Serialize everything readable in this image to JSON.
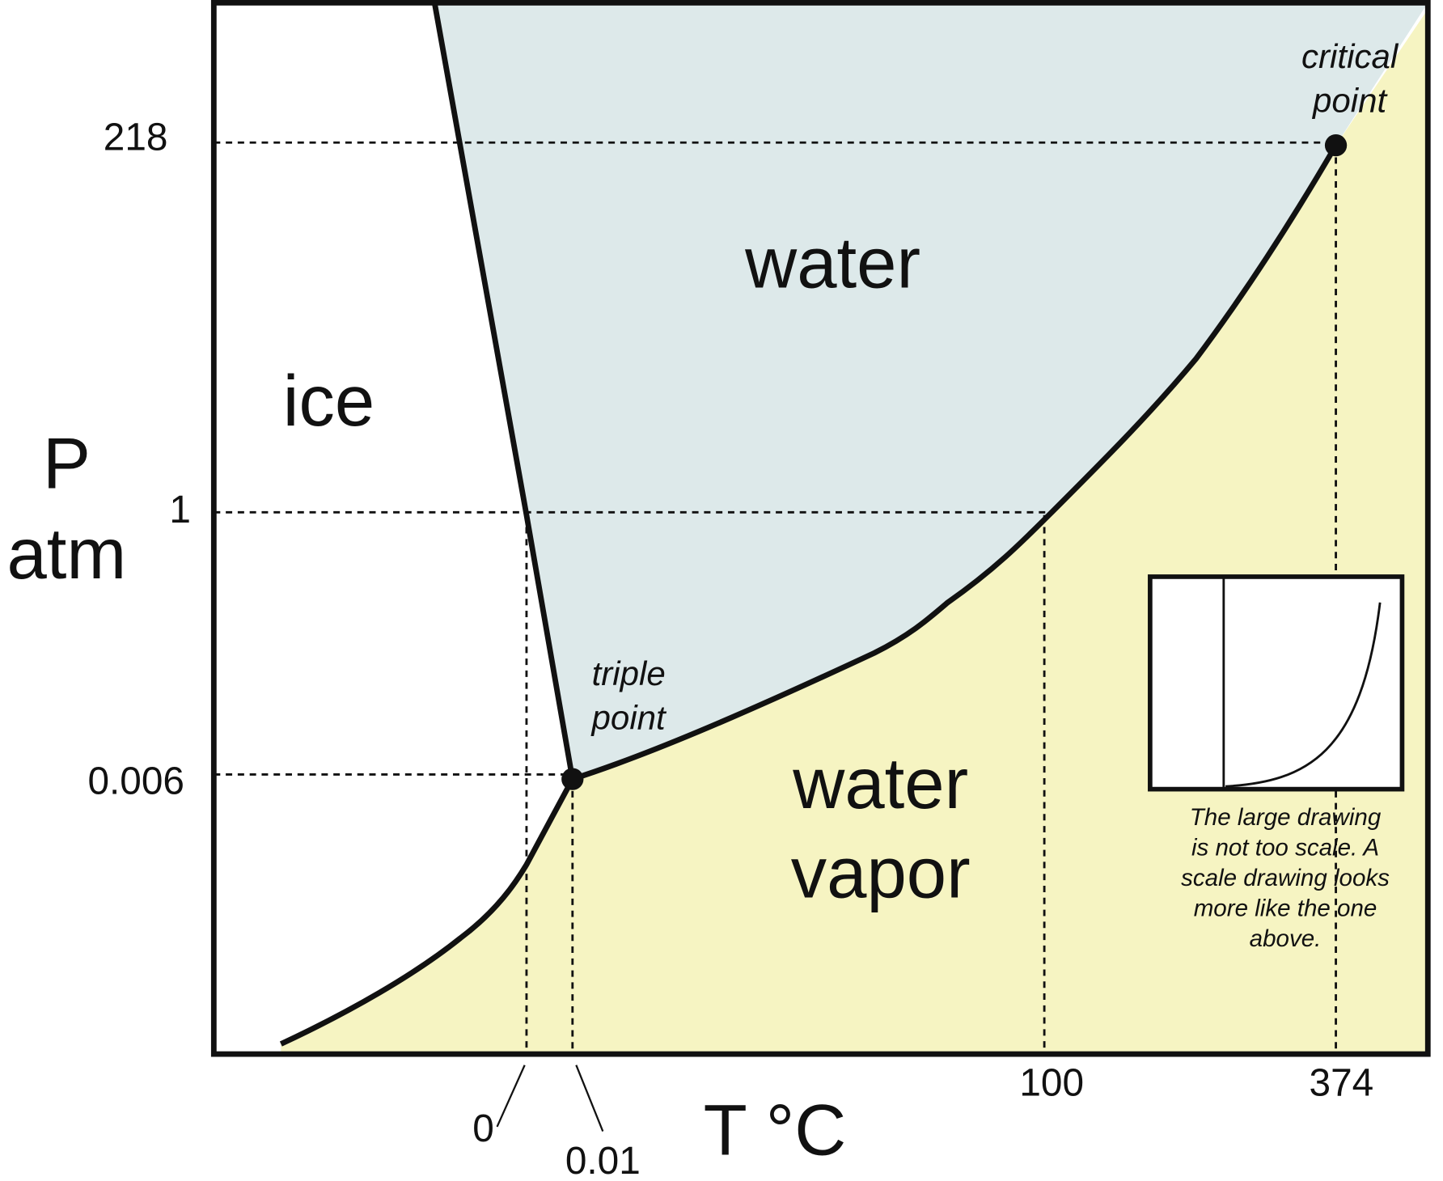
{
  "axes": {
    "y_label": [
      "P",
      "atm"
    ],
    "x_label": "T °C",
    "y_ticks": [
      "218",
      "1",
      "0.006"
    ],
    "x_ticks": [
      "0",
      "0.01",
      "100",
      "374"
    ]
  },
  "regions": [
    "ice",
    "water",
    "water",
    "vapor"
  ],
  "points": {
    "triple": [
      "triple",
      "point"
    ],
    "critical": [
      "critical",
      "point"
    ]
  },
  "inset": {
    "caption": [
      "The large drawing",
      "is not too scale.  A",
      "scale drawing looks",
      "more like the one",
      "above."
    ]
  }
}
